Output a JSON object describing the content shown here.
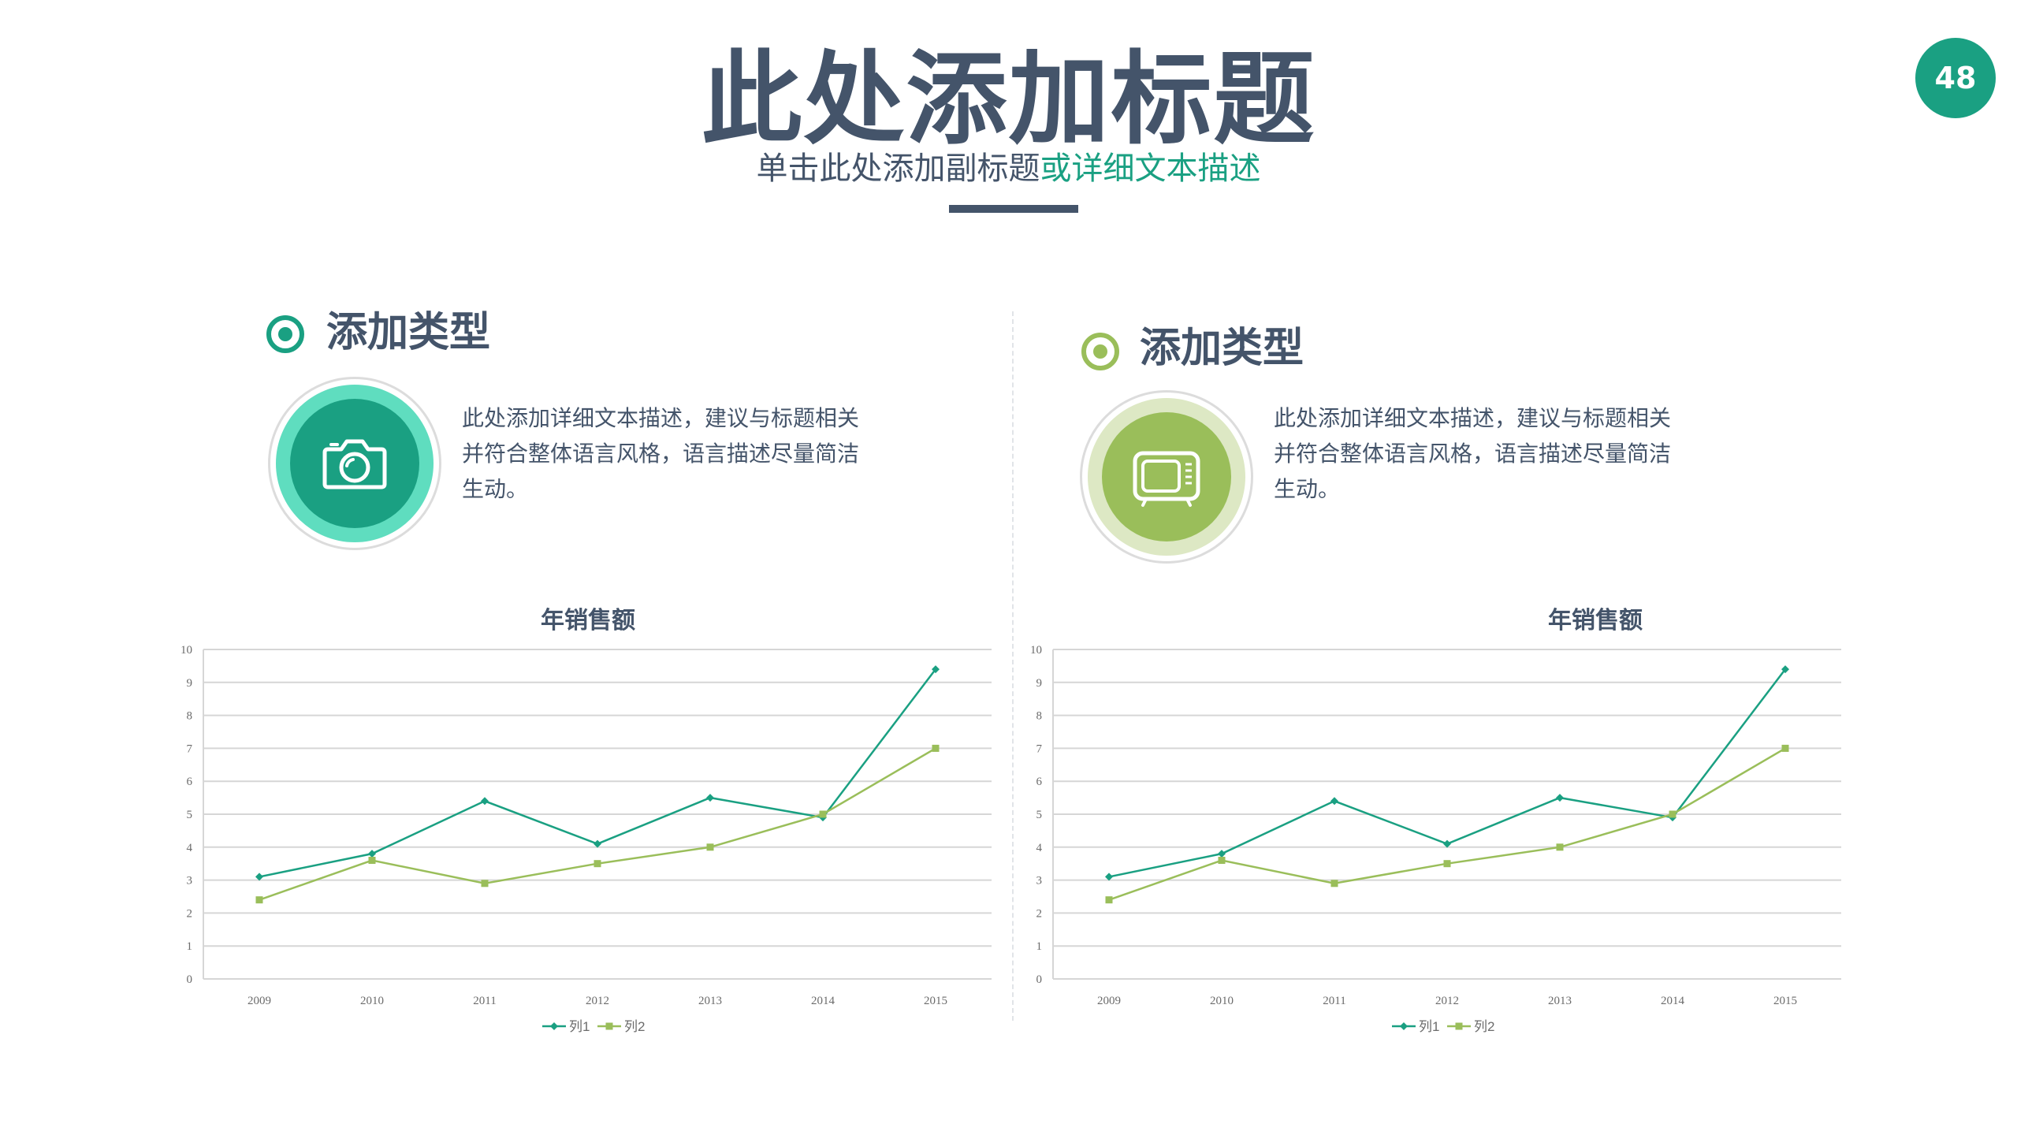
{
  "header": {
    "title": "此处添加标题",
    "subtitle_main": "单击此处添加副标题",
    "subtitle_accent": "或详细文本描述",
    "page_number": "48"
  },
  "colors": {
    "heading": "#44546a",
    "teal": "#1aa082",
    "teal_light": "#5fddbf",
    "olive": "#9abe5a",
    "olive_light": "#dde8c4",
    "grid": "#d6d6d6"
  },
  "panels": [
    {
      "heading": "添加类型",
      "icon": "camera-icon",
      "description": "此处添加详细文本描述，建议与标题相关并符合整体语言风格，语言描述尽量简洁生动。"
    },
    {
      "heading": "添加类型",
      "icon": "tv-icon",
      "description": "此处添加详细文本描述，建议与标题相关并符合整体语言风格，语言描述尽量简洁生动。"
    }
  ],
  "chart_data": [
    {
      "type": "line",
      "title": "年销售额",
      "categories": [
        "2009",
        "2010",
        "2011",
        "2012",
        "2013",
        "2014",
        "2015"
      ],
      "series": [
        {
          "name": "列1",
          "color": "#1aa082",
          "marker": "diamond",
          "values": [
            3.1,
            3.8,
            5.4,
            4.1,
            5.5,
            4.9,
            9.4
          ]
        },
        {
          "name": "列2",
          "color": "#9abe5a",
          "marker": "square",
          "values": [
            2.4,
            3.6,
            2.9,
            3.5,
            4.0,
            5.0,
            7.0
          ]
        }
      ],
      "ylim": [
        0,
        10
      ],
      "yticks": [
        "0",
        "1",
        "2",
        "3",
        "4",
        "5",
        "6",
        "7",
        "8",
        "9",
        "10"
      ],
      "grid": true,
      "legend": "bottom"
    },
    {
      "type": "line",
      "title": "年销售额",
      "categories": [
        "2009",
        "2010",
        "2011",
        "2012",
        "2013",
        "2014",
        "2015"
      ],
      "series": [
        {
          "name": "列1",
          "color": "#1aa082",
          "marker": "diamond",
          "values": [
            3.1,
            3.8,
            5.4,
            4.1,
            5.5,
            4.9,
            9.4
          ]
        },
        {
          "name": "列2",
          "color": "#9abe5a",
          "marker": "square",
          "values": [
            2.4,
            3.6,
            2.9,
            3.5,
            4.0,
            5.0,
            7.0
          ]
        }
      ],
      "ylim": [
        0,
        10
      ],
      "yticks": [
        "0",
        "1",
        "2",
        "3",
        "4",
        "5",
        "6",
        "7",
        "8",
        "9",
        "10"
      ],
      "grid": true,
      "legend": "bottom"
    }
  ]
}
